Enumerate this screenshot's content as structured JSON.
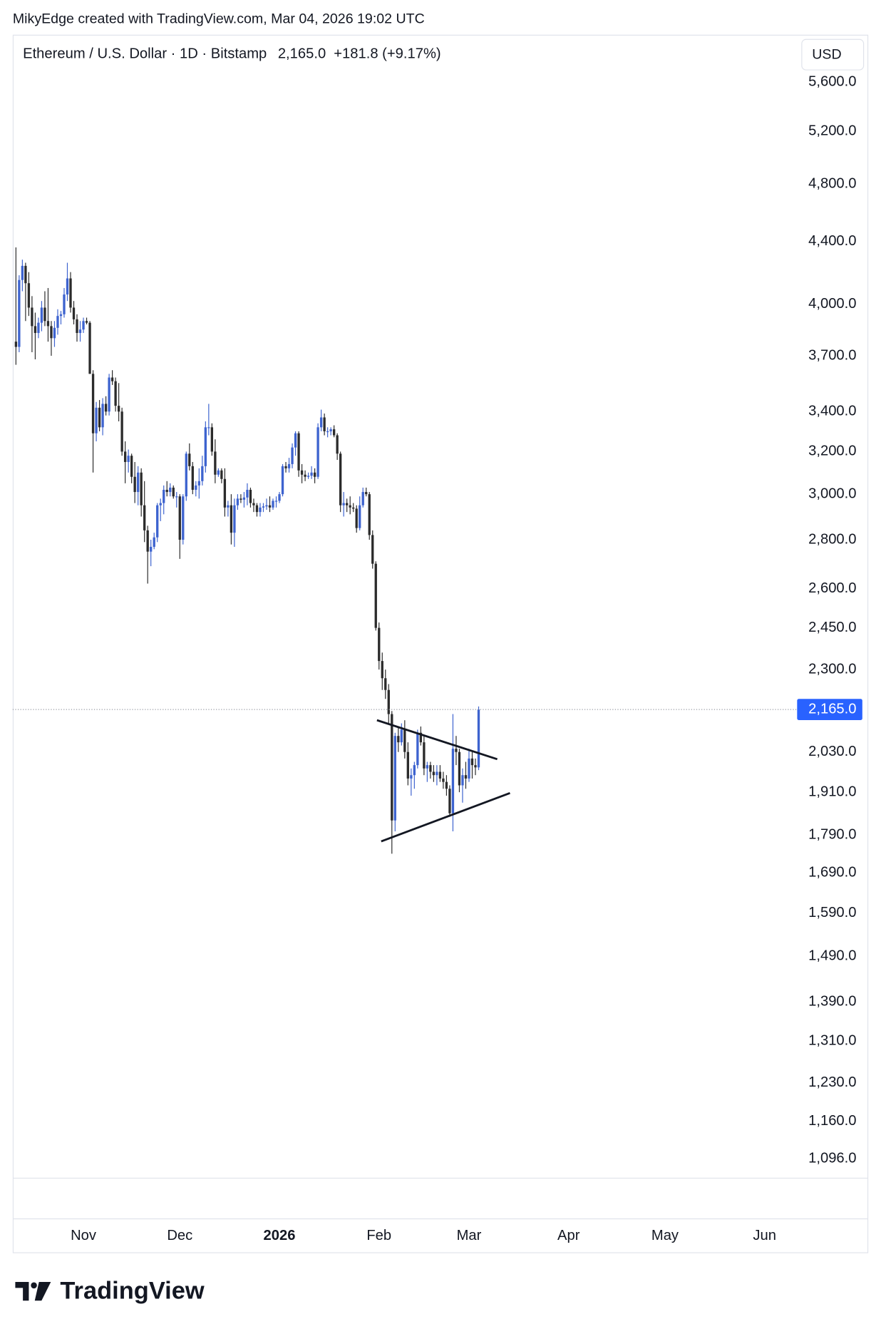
{
  "caption": "MikyEdge created with TradingView.com, Mar 04, 2026 19:02 UTC",
  "brand": "TradingView",
  "chart_data": {
    "type": "candlestick",
    "title": "Ethereum / U.S. Dollar · 1D · Bitstamp",
    "last_price_label": "2,165.0",
    "change": "+181.8 (+9.17%)",
    "currency": "USD",
    "log_scale": true,
    "up_color": "#3d63cf",
    "down_color": "#2b2b2b",
    "open": [
      3780,
      3750,
      4150,
      4240,
      4130,
      3980,
      3870,
      3830,
      3890,
      3980,
      3900,
      3870,
      3800,
      3860,
      3930,
      3940,
      4060,
      4160,
      3980,
      3910,
      3830,
      3850,
      3900,
      3890,
      3600,
      3290,
      3420,
      3320,
      3440,
      3400,
      3580,
      3560,
      3430,
      3400,
      3200,
      3150,
      3180,
      3080,
      3010,
      3100,
      2950,
      2840,
      2750,
      2770,
      2810,
      2950,
      2960,
      3020,
      3010,
      3030,
      2990,
      2990,
      2800,
      2990,
      3190,
      3130,
      3020,
      3040,
      3060,
      3130,
      3320,
      3320,
      3200,
      3090,
      3110,
      3070,
      2940,
      2950,
      2830,
      2950,
      2980,
      2975,
      2985,
      3020,
      2960,
      2950,
      2920,
      2940,
      2945,
      2950,
      2940,
      2970,
      2970,
      3000,
      3130,
      3120,
      3140,
      3220,
      3290,
      3110,
      3090,
      3080,
      3085,
      3100,
      3080,
      3320,
      3370,
      3300,
      3300,
      3310,
      3280,
      3190,
      2950,
      2960,
      2950,
      2940,
      2935,
      2850,
      2950,
      3010,
      3000,
      2820,
      2700,
      2450,
      2330,
      2270,
      2230,
      2150,
      1830,
      2080,
      2060,
      2100,
      2030,
      1950,
      1960,
      1990,
      2090,
      2060,
      1980,
      1990,
      1970,
      1960,
      1970,
      1950,
      1940,
      1920,
      1850,
      2040,
      2030,
      1930,
      1960,
      1950,
      2010,
      1990,
      1983.2
    ],
    "high": [
      4360,
      4180,
      4280,
      4260,
      4200,
      4050,
      3950,
      3920,
      4020,
      4080,
      4100,
      3900,
      3900,
      3970,
      3960,
      4100,
      4260,
      4200,
      4020,
      3940,
      3900,
      3920,
      3920,
      3900,
      3620,
      3450,
      3460,
      3470,
      3480,
      3600,
      3620,
      3580,
      3550,
      3420,
      3250,
      3210,
      3190,
      3150,
      3130,
      3120,
      3060,
      2860,
      2800,
      2830,
      2960,
      2980,
      3040,
      3060,
      3050,
      3040,
      3010,
      3000,
      3000,
      3200,
      3240,
      3150,
      3060,
      3120,
      3180,
      3350,
      3440,
      3340,
      3260,
      3120,
      3120,
      3120,
      2970,
      3000,
      2980,
      3000,
      3000,
      3010,
      3050,
      3030,
      2980,
      2960,
      2960,
      2960,
      2980,
      2990,
      2980,
      2990,
      3010,
      3140,
      3150,
      3170,
      3240,
      3300,
      3300,
      3140,
      3110,
      3100,
      3130,
      3120,
      3340,
      3410,
      3390,
      3320,
      3320,
      3330,
      3290,
      3200,
      3010,
      2980,
      2990,
      2960,
      2950,
      2990,
      3030,
      3030,
      3010,
      2840,
      2710,
      2470,
      2360,
      2300,
      2250,
      2160,
      2090,
      2110,
      2120,
      2130,
      2060,
      1980,
      2000,
      2100,
      2110,
      2080,
      2000,
      2000,
      1990,
      1990,
      1990,
      1970,
      1960,
      1930,
      2150,
      2080,
      2040,
      1980,
      2000,
      2040,
      2030,
      2010,
      2175
    ],
    "low": [
      3650,
      3720,
      4080,
      3900,
      3930,
      3720,
      3680,
      3800,
      3840,
      3870,
      3780,
      3700,
      3750,
      3820,
      3880,
      3920,
      4020,
      3950,
      3880,
      3780,
      3780,
      3830,
      3880,
      3600,
      3100,
      3250,
      3300,
      3280,
      3380,
      3380,
      3540,
      3400,
      3350,
      3180,
      3050,
      3100,
      3050,
      2960,
      2950,
      2900,
      2790,
      2620,
      2690,
      2760,
      2790,
      2880,
      2910,
      2990,
      2990,
      2980,
      2940,
      2720,
      2780,
      2970,
      3110,
      3000,
      2990,
      2980,
      3040,
      3100,
      3280,
      3180,
      3050,
      3080,
      3050,
      2900,
      2900,
      2780,
      2770,
      2930,
      2960,
      2940,
      2950,
      2940,
      2920,
      2900,
      2900,
      2920,
      2930,
      2920,
      2930,
      2940,
      2960,
      2990,
      3100,
      3100,
      3120,
      3180,
      3080,
      3050,
      3060,
      3070,
      3070,
      3050,
      3070,
      3300,
      3280,
      3270,
      3280,
      3270,
      3160,
      2920,
      2900,
      2920,
      2910,
      2920,
      2830,
      2840,
      2940,
      2990,
      2800,
      2680,
      2440,
      2300,
      2230,
      2200,
      2120,
      1740,
      1800,
      2030,
      2050,
      2010,
      1930,
      1900,
      1920,
      1980,
      2050,
      1960,
      1940,
      1950,
      1940,
      1930,
      1940,
      1920,
      1900,
      1840,
      1800,
      1990,
      1910,
      1880,
      1920,
      1940,
      1950,
      1960,
      1975
    ],
    "close": [
      3750,
      4150,
      4240,
      4130,
      3980,
      3870,
      3830,
      3890,
      3980,
      3900,
      3870,
      3800,
      3860,
      3930,
      3940,
      4060,
      4160,
      3980,
      3910,
      3830,
      3850,
      3900,
      3890,
      3600,
      3290,
      3420,
      3320,
      3440,
      3400,
      3580,
      3560,
      3430,
      3400,
      3200,
      3150,
      3180,
      3080,
      3010,
      3100,
      2950,
      2840,
      2750,
      2770,
      2810,
      2950,
      2960,
      3020,
      3010,
      3030,
      2990,
      2990,
      2800,
      2990,
      3190,
      3130,
      3020,
      3040,
      3060,
      3130,
      3320,
      3320,
      3200,
      3090,
      3110,
      3070,
      2940,
      2950,
      2830,
      2950,
      2980,
      2975,
      2985,
      3020,
      2960,
      2950,
      2920,
      2940,
      2945,
      2950,
      2940,
      2970,
      2970,
      3000,
      3130,
      3120,
      3140,
      3220,
      3290,
      3110,
      3090,
      3080,
      3085,
      3100,
      3080,
      3320,
      3370,
      3300,
      3300,
      3310,
      3280,
      3190,
      2950,
      2960,
      2950,
      2940,
      2935,
      2850,
      2950,
      3010,
      3000,
      2820,
      2700,
      2450,
      2330,
      2270,
      2230,
      2150,
      1830,
      2080,
      2060,
      2100,
      2030,
      1950,
      1960,
      1990,
      2090,
      2060,
      1980,
      1990,
      1970,
      1960,
      1970,
      1950,
      1940,
      1920,
      1850,
      2040,
      2030,
      1930,
      1960,
      1950,
      2010,
      1990,
      1983.2,
      2165.0
    ],
    "xlim": [
      -1,
      265
    ],
    "xticks": [
      {
        "value": 21,
        "label": "Nov"
      },
      {
        "value": 51,
        "label": "Dec"
      },
      {
        "value": 82,
        "label": "2026"
      },
      {
        "value": 113,
        "label": "Feb"
      },
      {
        "value": 141,
        "label": "Mar"
      },
      {
        "value": 172,
        "label": "Apr"
      },
      {
        "value": 202,
        "label": "May"
      },
      {
        "value": 233,
        "label": "Jun"
      }
    ],
    "ylim": [
      1065,
      6010
    ],
    "yticks": [
      {
        "value": 5600,
        "label": "5,600.0"
      },
      {
        "value": 5200,
        "label": "5,200.0"
      },
      {
        "value": 4800,
        "label": "4,800.0"
      },
      {
        "value": 4400,
        "label": "4,400.0"
      },
      {
        "value": 4000,
        "label": "4,000.0"
      },
      {
        "value": 3700,
        "label": "3,700.0"
      },
      {
        "value": 3400,
        "label": "3,400.0"
      },
      {
        "value": 3200,
        "label": "3,200.0"
      },
      {
        "value": 3000,
        "label": "3,000.0"
      },
      {
        "value": 2800,
        "label": "2,800.0"
      },
      {
        "value": 2600,
        "label": "2,600.0"
      },
      {
        "value": 2450,
        "label": "2,450.0"
      },
      {
        "value": 2300,
        "label": "2,300.0"
      },
      {
        "value": 2030,
        "label": "2,030.0"
      },
      {
        "value": 1910,
        "label": "1,910.0"
      },
      {
        "value": 1790,
        "label": "1,790.0"
      },
      {
        "value": 1690,
        "label": "1,690.0"
      },
      {
        "value": 1590,
        "label": "1,590.0"
      },
      {
        "value": 1490,
        "label": "1,490.0"
      },
      {
        "value": 1390,
        "label": "1,390.0"
      },
      {
        "value": 1310,
        "label": "1,310.0"
      },
      {
        "value": 1230,
        "label": "1,230.0"
      },
      {
        "value": 1160,
        "label": "1,160.0"
      },
      {
        "value": 1096,
        "label": "1,096.0"
      }
    ]
  }
}
